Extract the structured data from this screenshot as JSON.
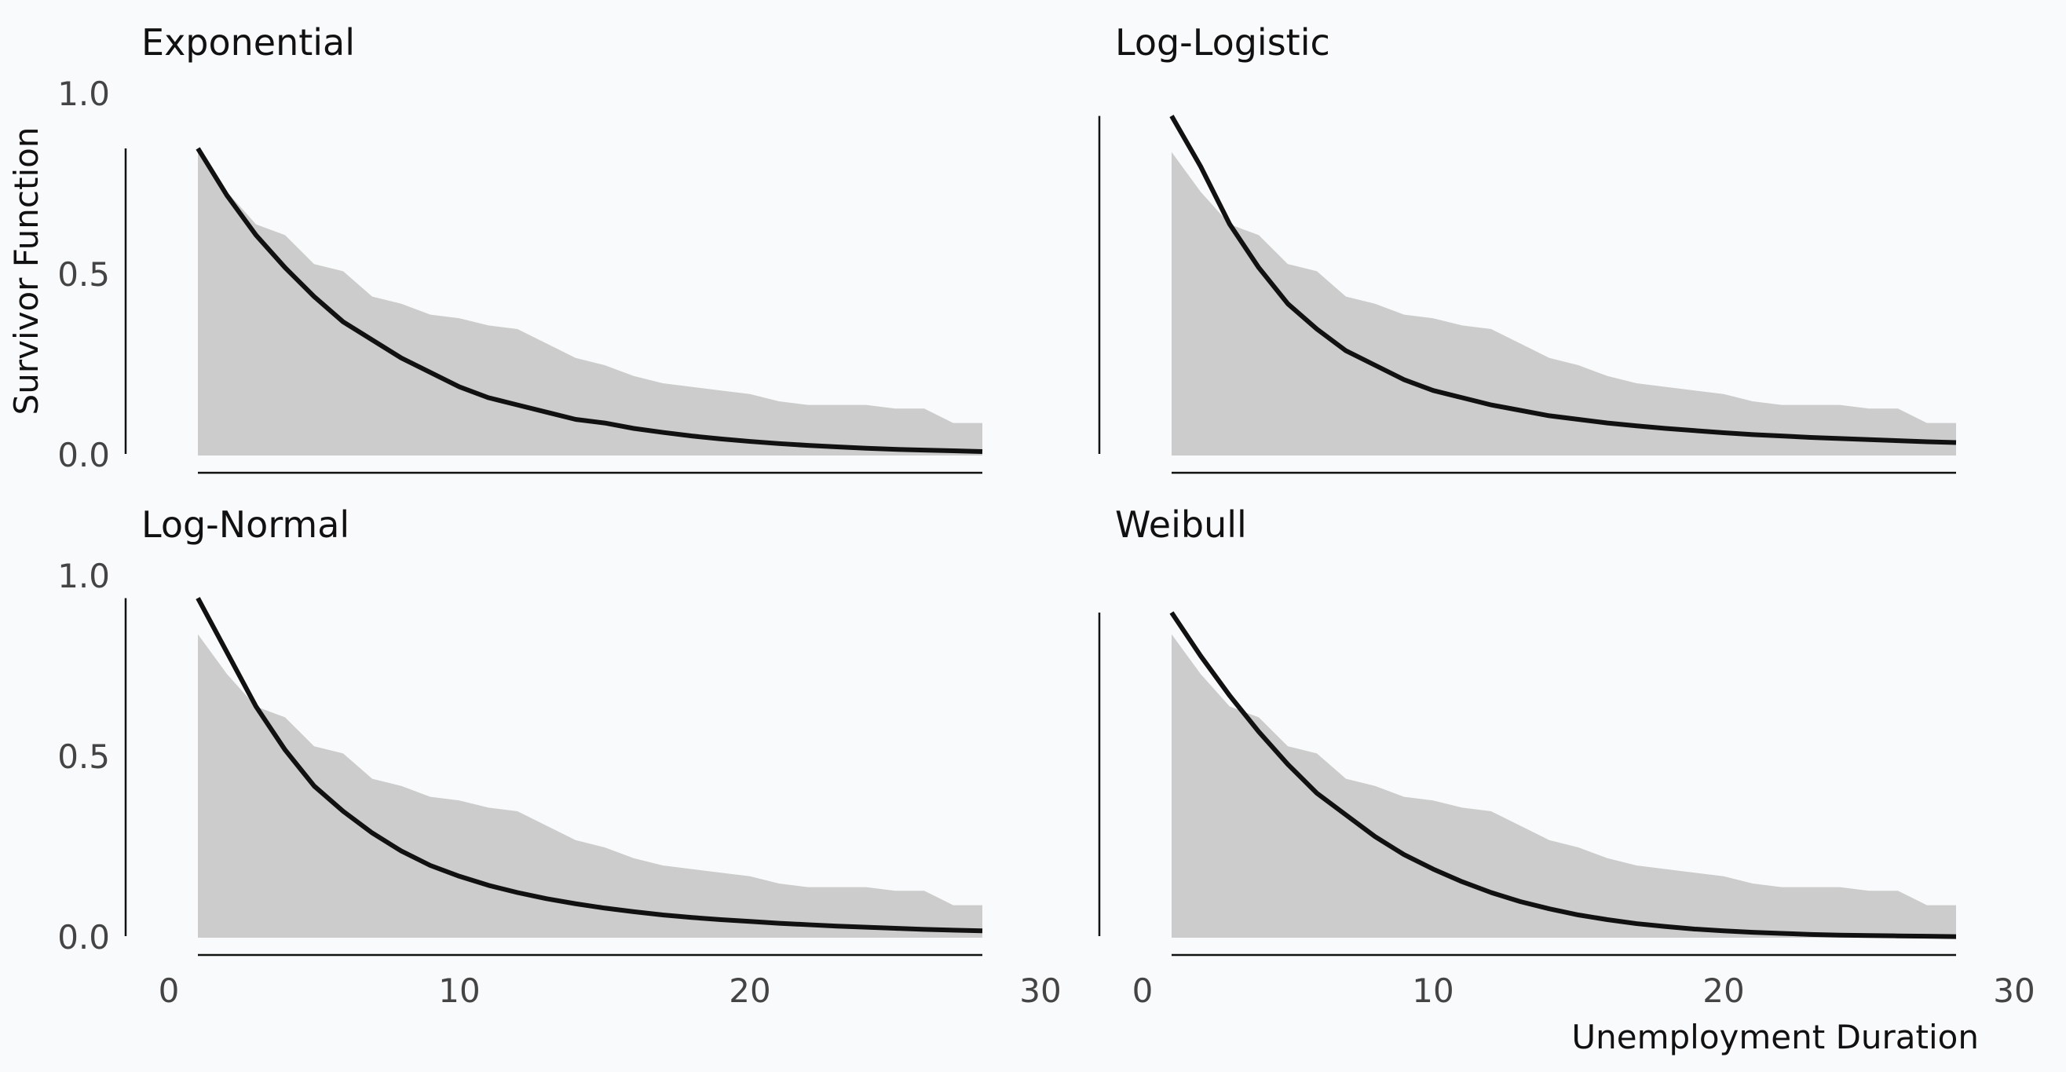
{
  "chart_data": {
    "type": "area",
    "ylabel": "Survivor Function",
    "xlabel": "Unemployment Duration",
    "xlim": [
      0,
      30
    ],
    "ylim": [
      0,
      1
    ],
    "xticks": [
      "0",
      "10",
      "20",
      "30"
    ],
    "yticks": [
      "0.0",
      "0.5",
      "1.0"
    ],
    "grid": false,
    "empirical": {
      "x": [
        1,
        2,
        3,
        4,
        5,
        6,
        7,
        8,
        9,
        10,
        11,
        12,
        13,
        14,
        15,
        16,
        17,
        18,
        19,
        20,
        21,
        22,
        23,
        24,
        25,
        26,
        27,
        28
      ],
      "y": [
        0.84,
        0.73,
        0.64,
        0.61,
        0.53,
        0.51,
        0.44,
        0.42,
        0.39,
        0.38,
        0.36,
        0.35,
        0.31,
        0.27,
        0.25,
        0.22,
        0.2,
        0.19,
        0.18,
        0.17,
        0.15,
        0.14,
        0.14,
        0.14,
        0.13,
        0.13,
        0.09,
        0.09
      ]
    },
    "panels": [
      {
        "title": "Exponential",
        "fitted": {
          "x": [
            1,
            2,
            3,
            4,
            5,
            6,
            7,
            8,
            9,
            10,
            11,
            12,
            13,
            14,
            15,
            16,
            17,
            18,
            19,
            20,
            21,
            22,
            23,
            24,
            25,
            26,
            27,
            28
          ],
          "y": [
            0.85,
            0.72,
            0.61,
            0.52,
            0.44,
            0.37,
            0.32,
            0.27,
            0.23,
            0.19,
            0.16,
            0.14,
            0.12,
            0.1,
            0.09,
            0.075,
            0.064,
            0.054,
            0.046,
            0.039,
            0.033,
            0.028,
            0.024,
            0.02,
            0.017,
            0.015,
            0.013,
            0.011
          ]
        }
      },
      {
        "title": "Log-Logistic",
        "fitted": {
          "x": [
            1,
            2,
            3,
            4,
            5,
            6,
            7,
            8,
            9,
            10,
            11,
            12,
            13,
            14,
            15,
            16,
            17,
            18,
            19,
            20,
            21,
            22,
            23,
            24,
            25,
            26,
            27,
            28
          ],
          "y": [
            0.94,
            0.8,
            0.64,
            0.52,
            0.42,
            0.35,
            0.29,
            0.25,
            0.21,
            0.18,
            0.16,
            0.14,
            0.125,
            0.11,
            0.1,
            0.09,
            0.082,
            0.075,
            0.069,
            0.063,
            0.058,
            0.054,
            0.05,
            0.047,
            0.044,
            0.041,
            0.038,
            0.036
          ]
        }
      },
      {
        "title": "Log-Normal",
        "fitted": {
          "x": [
            1,
            2,
            3,
            4,
            5,
            6,
            7,
            8,
            9,
            10,
            11,
            12,
            13,
            14,
            15,
            16,
            17,
            18,
            19,
            20,
            21,
            22,
            23,
            24,
            25,
            26,
            27,
            28
          ],
          "y": [
            0.94,
            0.79,
            0.64,
            0.52,
            0.42,
            0.35,
            0.29,
            0.24,
            0.2,
            0.17,
            0.145,
            0.125,
            0.108,
            0.094,
            0.082,
            0.072,
            0.063,
            0.056,
            0.05,
            0.045,
            0.04,
            0.036,
            0.032,
            0.029,
            0.026,
            0.023,
            0.021,
            0.019
          ]
        }
      },
      {
        "title": "Weibull",
        "fitted": {
          "x": [
            1,
            2,
            3,
            4,
            5,
            6,
            7,
            8,
            9,
            10,
            11,
            12,
            13,
            14,
            15,
            16,
            17,
            18,
            19,
            20,
            21,
            22,
            23,
            24,
            25,
            26,
            27,
            28
          ],
          "y": [
            0.9,
            0.78,
            0.67,
            0.57,
            0.48,
            0.4,
            0.34,
            0.28,
            0.23,
            0.19,
            0.155,
            0.125,
            0.1,
            0.08,
            0.063,
            0.05,
            0.039,
            0.031,
            0.024,
            0.019,
            0.015,
            0.012,
            0.009,
            0.007,
            0.006,
            0.005,
            0.004,
            0.003
          ]
        }
      }
    ]
  },
  "colors": {
    "background": "#f9fafb",
    "empirical_fill": "#cbcccb",
    "fitted_line": "#111111",
    "axis": "#111111",
    "tick_label": "#444444",
    "title_text": "#111111"
  }
}
